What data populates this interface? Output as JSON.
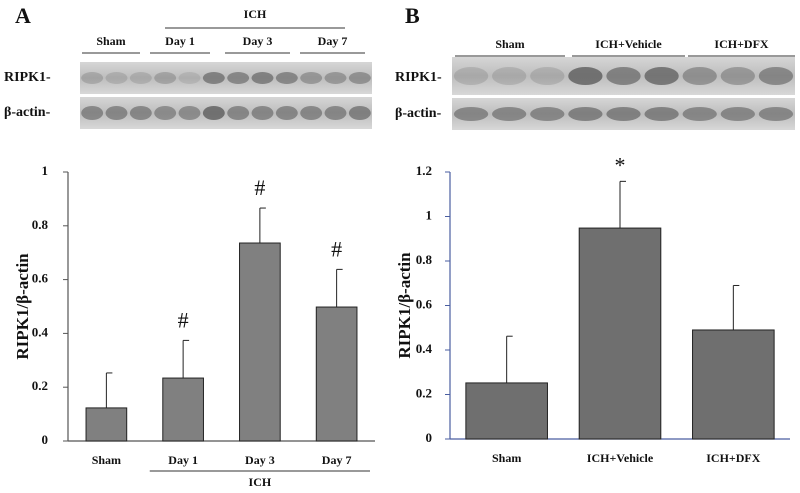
{
  "chart_data": [
    {
      "type": "bar",
      "panel_label": "A",
      "y_label": "RIPK1/β-actin",
      "categories": [
        "Sham",
        "Day 1",
        "Day 3",
        "Day 7"
      ],
      "values": [
        0.123,
        0.234,
        0.736,
        0.498
      ],
      "errors": [
        0.13,
        0.14,
        0.13,
        0.14
      ],
      "annotations": [
        null,
        "#",
        "#",
        "#"
      ],
      "x_group_label": "ICH",
      "color": "#808080",
      "ylim": [
        0,
        1
      ],
      "yticks": [
        0,
        0.2,
        0.4,
        0.6,
        0.8,
        1
      ]
    },
    {
      "type": "bar",
      "panel_label": "B",
      "y_label": "RIPK1/β-actin",
      "categories": [
        "Sham",
        "ICH+Vehicle",
        "ICH+DFX"
      ],
      "values": [
        0.252,
        0.948,
        0.49
      ],
      "errors": [
        0.21,
        0.21,
        0.2
      ],
      "annotations": [
        null,
        "*",
        null
      ],
      "color": "#6f6f6f",
      "ylim": [
        0,
        1.2
      ],
      "yticks": [
        0,
        0.2,
        0.4,
        0.6,
        0.8,
        1,
        1.2
      ]
    }
  ],
  "blots": [
    {
      "group_label": "ICH",
      "lane_labels": [
        "Sham",
        "Day 1",
        "Day 3",
        "Day 7"
      ],
      "row_labels": [
        "RIPK1-",
        "β-actin-"
      ]
    },
    {
      "lane_labels": [
        "Sham",
        "ICH+Vehicle",
        "ICH+DFX"
      ],
      "row_labels": [
        "RIPK1-",
        "β-actin-"
      ]
    }
  ]
}
